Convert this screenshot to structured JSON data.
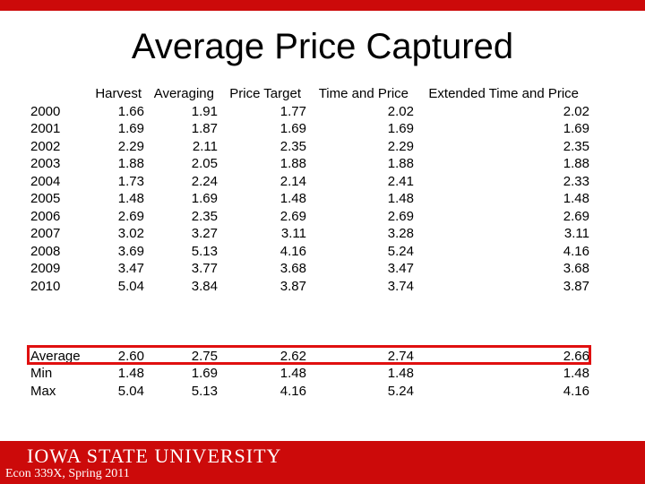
{
  "slide": {
    "title": "Average Price Captured",
    "footer_logo": "IOWA STATE UNIVERSITY",
    "footer_course": "Econ 339X, Spring 2011"
  },
  "colors": {
    "accent": "#cc0a0a",
    "highlight_border": "#e01010"
  },
  "table": {
    "headers": [
      "Harvest",
      "Averaging",
      "Price Target",
      "Time and Price",
      "Extended Time and Price"
    ],
    "rows": [
      {
        "label": "2000",
        "values": [
          "1.66",
          "1.91",
          "1.77",
          "2.02",
          "2.02"
        ]
      },
      {
        "label": "2001",
        "values": [
          "1.69",
          "1.87",
          "1.69",
          "1.69",
          "1.69"
        ]
      },
      {
        "label": "2002",
        "values": [
          "2.29",
          "2.11",
          "2.35",
          "2.29",
          "2.35"
        ]
      },
      {
        "label": "2003",
        "values": [
          "1.88",
          "2.05",
          "1.88",
          "1.88",
          "1.88"
        ]
      },
      {
        "label": "2004",
        "values": [
          "1.73",
          "2.24",
          "2.14",
          "2.41",
          "2.33"
        ]
      },
      {
        "label": "2005",
        "values": [
          "1.48",
          "1.69",
          "1.48",
          "1.48",
          "1.48"
        ]
      },
      {
        "label": "2006",
        "values": [
          "2.69",
          "2.35",
          "2.69",
          "2.69",
          "2.69"
        ]
      },
      {
        "label": "2007",
        "values": [
          "3.02",
          "3.27",
          "3.11",
          "3.28",
          "3.11"
        ]
      },
      {
        "label": "2008",
        "values": [
          "3.69",
          "5.13",
          "4.16",
          "5.24",
          "4.16"
        ]
      },
      {
        "label": "2009",
        "values": [
          "3.47",
          "3.77",
          "3.68",
          "3.47",
          "3.68"
        ]
      },
      {
        "label": "2010",
        "values": [
          "5.04",
          "3.84",
          "3.87",
          "3.74",
          "3.87"
        ]
      }
    ],
    "summary": [
      {
        "label": "Average",
        "values": [
          "2.60",
          "2.75",
          "2.62",
          "2.74",
          "2.66"
        ]
      },
      {
        "label": "Min",
        "values": [
          "1.48",
          "1.69",
          "1.48",
          "1.48",
          "1.48"
        ]
      },
      {
        "label": "Max",
        "values": [
          "5.04",
          "5.13",
          "4.16",
          "5.24",
          "4.16"
        ]
      }
    ]
  }
}
